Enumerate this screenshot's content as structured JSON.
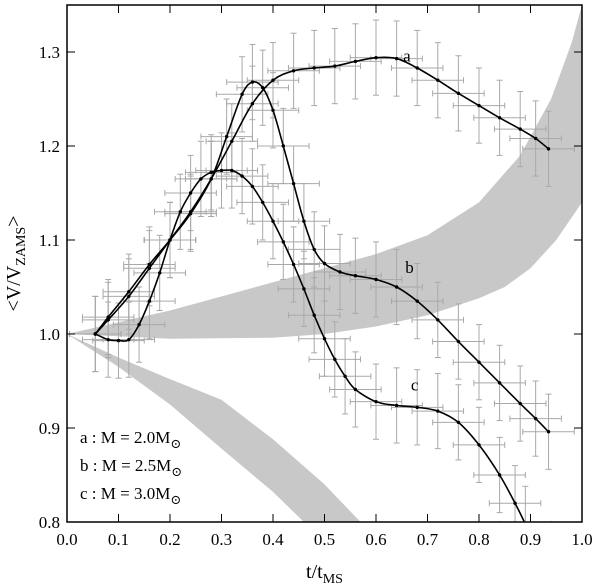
{
  "chart_data": {
    "type": "line",
    "xlabel": "t/t",
    "xlabel_sub": "MS",
    "ylabel": "<V/V",
    "ylabel_sub": "ZAMS",
    "ylabel_end": ">",
    "xlim": [
      0.0,
      1.0
    ],
    "ylim": [
      0.8,
      1.35
    ],
    "xticks": [
      "0.0",
      "0.1",
      "0.2",
      "0.3",
      "0.4",
      "0.5",
      "0.6",
      "0.7",
      "0.8",
      "0.9",
      "1.0"
    ],
    "yticks": [
      "0.8",
      "0.9",
      "1.0",
      "1.1",
      "1.2",
      "1.3"
    ],
    "grid": false,
    "legend_position": "bottom-left",
    "legend": [
      {
        "key": "a",
        "text": "a : M = 2.0M",
        "symbol": "⊙"
      },
      {
        "key": "b",
        "text": "b : M = 2.5M",
        "symbol": "⊙"
      },
      {
        "key": "c",
        "text": "c : M = 3.0M",
        "symbol": "⊙"
      }
    ],
    "series": [
      {
        "name": "a",
        "label_at": [
          0.66,
          1.29
        ],
        "x": [
          0.055,
          0.08,
          0.12,
          0.16,
          0.2,
          0.24,
          0.28,
          0.32,
          0.36,
          0.4,
          0.44,
          0.48,
          0.52,
          0.56,
          0.6,
          0.64,
          0.68,
          0.72,
          0.76,
          0.8,
          0.84,
          0.88,
          0.91,
          0.935
        ],
        "y": [
          1.0,
          1.015,
          1.04,
          1.07,
          1.1,
          1.13,
          1.165,
          1.205,
          1.245,
          1.27,
          1.28,
          1.283,
          1.285,
          1.29,
          1.294,
          1.293,
          1.283,
          1.27,
          1.256,
          1.243,
          1.23,
          1.218,
          1.208,
          1.197
        ]
      },
      {
        "name": "b",
        "label_at": [
          0.665,
          1.065
        ],
        "x": [
          0.055,
          0.08,
          0.12,
          0.16,
          0.2,
          0.24,
          0.28,
          0.31,
          0.34,
          0.36,
          0.38,
          0.4,
          0.42,
          0.44,
          0.46,
          0.48,
          0.5,
          0.53,
          0.56,
          0.6,
          0.64,
          0.68,
          0.72,
          0.76,
          0.8,
          0.84,
          0.88,
          0.91,
          0.935
        ],
        "y": [
          1.0,
          1.018,
          1.045,
          1.074,
          1.1,
          1.128,
          1.165,
          1.21,
          1.255,
          1.268,
          1.262,
          1.238,
          1.2,
          1.16,
          1.12,
          1.09,
          1.075,
          1.066,
          1.062,
          1.058,
          1.05,
          1.035,
          1.015,
          0.992,
          0.97,
          0.948,
          0.926,
          0.91,
          0.896
        ]
      },
      {
        "name": "c",
        "label_at": [
          0.675,
          0.94
        ],
        "x": [
          0.055,
          0.08,
          0.1,
          0.12,
          0.14,
          0.16,
          0.18,
          0.2,
          0.22,
          0.24,
          0.26,
          0.28,
          0.3,
          0.32,
          0.34,
          0.36,
          0.38,
          0.4,
          0.42,
          0.44,
          0.46,
          0.48,
          0.5,
          0.52,
          0.54,
          0.56,
          0.6,
          0.64,
          0.68,
          0.72,
          0.76,
          0.8,
          0.84,
          0.87,
          0.89
        ],
        "y": [
          1.0,
          0.994,
          0.993,
          0.994,
          1.01,
          1.035,
          1.065,
          1.1,
          1.13,
          1.15,
          1.165,
          1.172,
          1.174,
          1.174,
          1.168,
          1.157,
          1.14,
          1.12,
          1.098,
          1.074,
          1.048,
          1.02,
          0.995,
          0.973,
          0.955,
          0.941,
          0.928,
          0.924,
          0.922,
          0.918,
          0.906,
          0.882,
          0.85,
          0.82,
          0.798
        ]
      }
    ],
    "bands": [
      {
        "name": "upper-band",
        "upper": {
          "x": [
            0.0,
            0.2,
            0.4,
            0.6,
            0.7,
            0.8,
            0.88,
            0.94,
            0.98,
            1.0
          ],
          "y": [
            1.0,
            1.025,
            1.055,
            1.085,
            1.105,
            1.14,
            1.19,
            1.25,
            1.31,
            1.35
          ]
        },
        "lower": {
          "x": [
            1.0,
            0.95,
            0.9,
            0.85,
            0.8,
            0.7,
            0.6,
            0.5,
            0.4,
            0.2,
            0.0
          ],
          "y": [
            1.14,
            1.1,
            1.07,
            1.05,
            1.038,
            1.02,
            1.008,
            1.0,
            0.996,
            0.995,
            1.0
          ]
        }
      },
      {
        "name": "lower-band",
        "upper": {
          "x": [
            0.0,
            0.1,
            0.2,
            0.3,
            0.4,
            0.5,
            0.57
          ],
          "y": [
            1.0,
            0.975,
            0.952,
            0.93,
            0.888,
            0.84,
            0.8
          ]
        },
        "lower": {
          "x": [
            0.46,
            0.4,
            0.3,
            0.2,
            0.1,
            0.0
          ],
          "y": [
            0.8,
            0.832,
            0.878,
            0.925,
            0.965,
            1.0
          ]
        }
      }
    ],
    "error_bars": {
      "y_half": 0.04,
      "x_half": 0.05,
      "stride": 1
    }
  }
}
